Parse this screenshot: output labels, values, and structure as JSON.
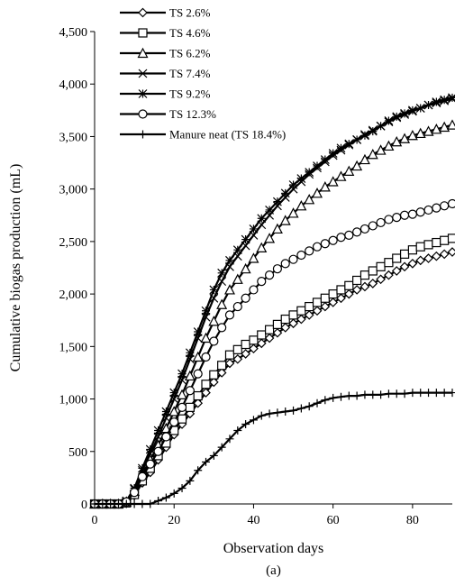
{
  "chart_data": {
    "type": "line",
    "xlabel": "Observation days",
    "ylabel": "Cumulative biogas production (mL)",
    "caption": "(a)",
    "xlim": [
      0,
      90
    ],
    "ylim": [
      0,
      4500
    ],
    "xticks": [
      0,
      20,
      40,
      60,
      80
    ],
    "xtick_labels": [
      "0",
      "20",
      "40",
      "60",
      "80"
    ],
    "yticks": [
      0,
      500,
      1000,
      1500,
      2000,
      2500,
      3000,
      3500,
      4000,
      4500
    ],
    "ytick_labels": [
      "0",
      "500",
      "1,000",
      "1,500",
      "2,000",
      "2,500",
      "3,000",
      "3,500",
      "4,000",
      "4,500"
    ],
    "grid": false,
    "legend_position": "top-left",
    "series": [
      {
        "name": "TS 2.6%",
        "marker": "diamond",
        "x": [
          0,
          2,
          4,
          6,
          8,
          10,
          12,
          14,
          16,
          18,
          20,
          22,
          24,
          26,
          28,
          30,
          32,
          34,
          36,
          38,
          40,
          42,
          44,
          46,
          48,
          50,
          52,
          54,
          56,
          58,
          60,
          62,
          64,
          66,
          68,
          70,
          72,
          74,
          76,
          78,
          80,
          82,
          84,
          86,
          88,
          90
        ],
        "y": [
          0,
          0,
          0,
          0,
          10,
          80,
          200,
          300,
          420,
          540,
          660,
          760,
          860,
          960,
          1060,
          1160,
          1250,
          1340,
          1380,
          1430,
          1480,
          1530,
          1580,
          1630,
          1680,
          1720,
          1760,
          1800,
          1840,
          1880,
          1920,
          1960,
          2000,
          2040,
          2070,
          2100,
          2140,
          2180,
          2220,
          2260,
          2290,
          2320,
          2340,
          2360,
          2380,
          2400
        ]
      },
      {
        "name": "TS 4.6%",
        "marker": "square",
        "x": [
          0,
          2,
          4,
          6,
          8,
          10,
          12,
          14,
          16,
          18,
          20,
          22,
          24,
          26,
          28,
          30,
          32,
          34,
          36,
          38,
          40,
          42,
          44,
          46,
          48,
          50,
          52,
          54,
          56,
          58,
          60,
          62,
          64,
          66,
          68,
          70,
          72,
          74,
          76,
          78,
          80,
          82,
          84,
          86,
          88,
          90
        ],
        "y": [
          0,
          0,
          0,
          0,
          10,
          90,
          220,
          340,
          460,
          580,
          700,
          810,
          920,
          1030,
          1140,
          1230,
          1320,
          1420,
          1470,
          1520,
          1560,
          1610,
          1660,
          1710,
          1760,
          1800,
          1840,
          1880,
          1920,
          1960,
          2000,
          2040,
          2080,
          2130,
          2180,
          2220,
          2260,
          2300,
          2340,
          2380,
          2420,
          2450,
          2470,
          2490,
          2510,
          2530
        ]
      },
      {
        "name": "TS 6.2%",
        "marker": "triangle",
        "x": [
          0,
          2,
          4,
          6,
          8,
          10,
          12,
          14,
          16,
          18,
          20,
          22,
          24,
          26,
          28,
          30,
          32,
          34,
          36,
          38,
          40,
          42,
          44,
          46,
          48,
          50,
          52,
          54,
          56,
          58,
          60,
          62,
          64,
          66,
          68,
          70,
          72,
          74,
          76,
          78,
          80,
          82,
          84,
          86,
          88,
          90
        ],
        "y": [
          0,
          0,
          0,
          0,
          20,
          120,
          280,
          420,
          560,
          720,
          880,
          1040,
          1220,
          1400,
          1580,
          1740,
          1900,
          2040,
          2140,
          2240,
          2340,
          2440,
          2530,
          2620,
          2700,
          2770,
          2840,
          2900,
          2960,
          3020,
          3070,
          3120,
          3170,
          3220,
          3280,
          3330,
          3370,
          3410,
          3450,
          3480,
          3510,
          3530,
          3550,
          3570,
          3590,
          3610
        ]
      },
      {
        "name": "TS 7.4%",
        "marker": "x",
        "x": [
          0,
          2,
          4,
          6,
          8,
          10,
          12,
          14,
          16,
          18,
          20,
          22,
          24,
          26,
          28,
          30,
          32,
          34,
          36,
          38,
          40,
          42,
          44,
          46,
          48,
          50,
          52,
          54,
          56,
          58,
          60,
          62,
          64,
          66,
          68,
          70,
          72,
          74,
          76,
          78,
          80,
          82,
          84,
          86,
          88,
          90
        ],
        "y": [
          0,
          0,
          0,
          0,
          25,
          140,
          320,
          480,
          640,
          820,
          1000,
          1180,
          1380,
          1580,
          1780,
          1960,
          2120,
          2260,
          2360,
          2460,
          2560,
          2660,
          2750,
          2840,
          2920,
          3000,
          3070,
          3140,
          3200,
          3260,
          3320,
          3370,
          3420,
          3470,
          3520,
          3560,
          3600,
          3640,
          3680,
          3710,
          3740,
          3770,
          3800,
          3820,
          3840,
          3860
        ]
      },
      {
        "name": "TS 9.2%",
        "marker": "asterisk",
        "x": [
          0,
          2,
          4,
          6,
          8,
          10,
          12,
          14,
          16,
          18,
          20,
          22,
          24,
          26,
          28,
          30,
          32,
          34,
          36,
          38,
          40,
          42,
          44,
          46,
          48,
          50,
          52,
          54,
          56,
          58,
          60,
          62,
          64,
          66,
          68,
          70,
          72,
          74,
          76,
          78,
          80,
          82,
          84,
          86,
          88,
          90
        ],
        "y": [
          0,
          0,
          0,
          0,
          30,
          150,
          340,
          520,
          700,
          880,
          1060,
          1240,
          1440,
          1640,
          1840,
          2040,
          2200,
          2320,
          2420,
          2520,
          2620,
          2720,
          2800,
          2880,
          2960,
          3040,
          3100,
          3160,
          3220,
          3280,
          3340,
          3390,
          3430,
          3470,
          3510,
          3550,
          3600,
          3650,
          3690,
          3720,
          3750,
          3770,
          3800,
          3830,
          3850,
          3870
        ]
      },
      {
        "name": "TS 12.3%",
        "marker": "circle",
        "x": [
          0,
          2,
          4,
          6,
          8,
          10,
          12,
          14,
          16,
          18,
          20,
          22,
          24,
          26,
          28,
          30,
          32,
          34,
          36,
          38,
          40,
          42,
          44,
          46,
          48,
          50,
          52,
          54,
          56,
          58,
          60,
          62,
          64,
          66,
          68,
          70,
          72,
          74,
          76,
          78,
          80,
          82,
          84,
          86,
          88,
          90
        ],
        "y": [
          0,
          0,
          0,
          0,
          20,
          110,
          260,
          380,
          500,
          640,
          780,
          920,
          1080,
          1240,
          1400,
          1550,
          1680,
          1800,
          1880,
          1960,
          2040,
          2120,
          2180,
          2240,
          2290,
          2330,
          2370,
          2410,
          2450,
          2480,
          2510,
          2540,
          2560,
          2590,
          2620,
          2650,
          2680,
          2710,
          2730,
          2750,
          2760,
          2780,
          2800,
          2820,
          2840,
          2860
        ]
      },
      {
        "name": "Manure neat (TS 18.4%)",
        "marker": "plus",
        "x": [
          0,
          2,
          4,
          6,
          8,
          10,
          12,
          14,
          16,
          18,
          20,
          22,
          24,
          26,
          28,
          30,
          32,
          34,
          36,
          38,
          40,
          42,
          44,
          46,
          48,
          50,
          52,
          54,
          56,
          58,
          60,
          62,
          64,
          66,
          68,
          70,
          72,
          74,
          76,
          78,
          80,
          82,
          84,
          86,
          88,
          90
        ],
        "y": [
          0,
          0,
          0,
          0,
          0,
          0,
          0,
          0,
          30,
          60,
          100,
          150,
          220,
          320,
          400,
          460,
          540,
          620,
          700,
          760,
          800,
          840,
          860,
          870,
          880,
          890,
          910,
          930,
          960,
          990,
          1010,
          1020,
          1030,
          1030,
          1040,
          1040,
          1040,
          1050,
          1050,
          1050,
          1060,
          1060,
          1060,
          1060,
          1060,
          1060
        ]
      }
    ]
  }
}
